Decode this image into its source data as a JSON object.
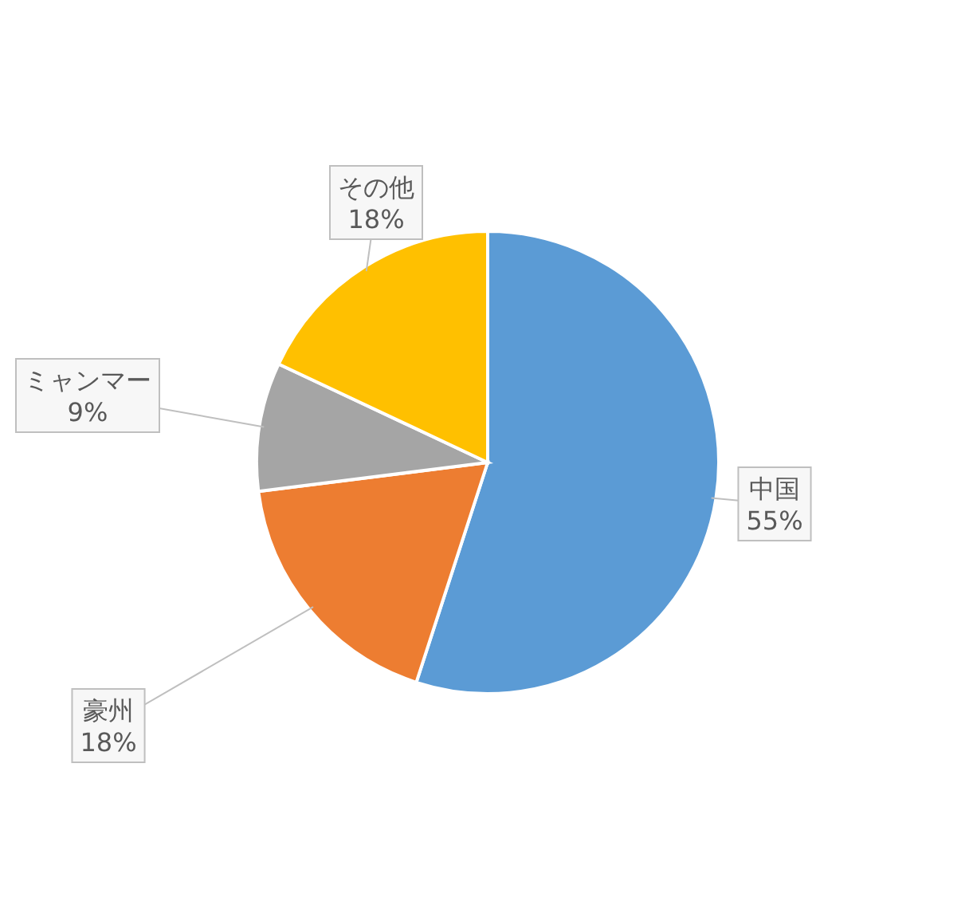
{
  "chart_data": {
    "type": "pie",
    "categories": [
      "中国",
      "豪州",
      "ミャンマー",
      "その他"
    ],
    "values": [
      55,
      18,
      9,
      18
    ],
    "value_labels": [
      "55%",
      "18%",
      "9%",
      "18%"
    ],
    "colors": [
      "#5b9bd5",
      "#ed7d31",
      "#a5a5a5",
      "#ffc000"
    ],
    "legend": false
  }
}
